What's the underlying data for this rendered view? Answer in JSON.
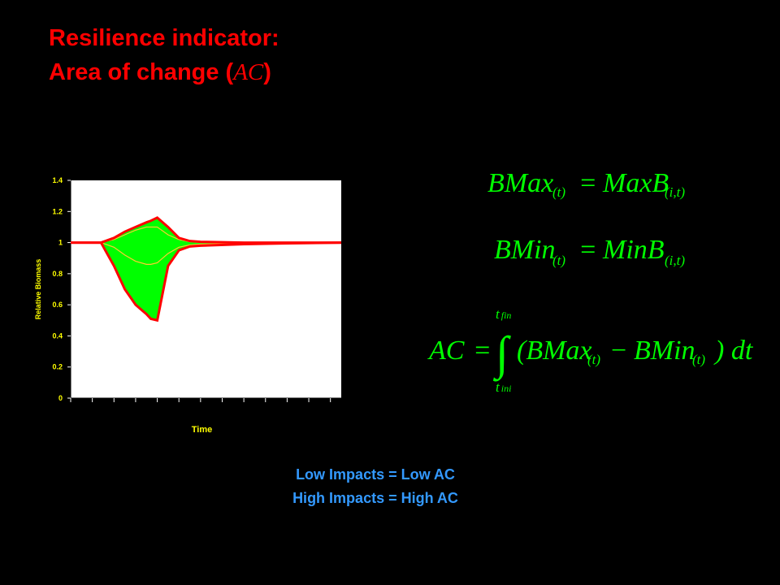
{
  "title": {
    "line1": "Resilience indicator:",
    "line2": "Area of change (",
    "line2_ac": "AC",
    "line2_end": ")"
  },
  "chart_data": {
    "type": "line",
    "y_label": "Relative Biomass",
    "x_label": "Time",
    "x": [
      0,
      1,
      1.4,
      2,
      2.5,
      3,
      3.5,
      3.7,
      4,
      4.5,
      5,
      5.5,
      6,
      8,
      10,
      12.5
    ],
    "xlim": [
      0,
      12.5
    ],
    "ylim": [
      0,
      1.4
    ],
    "yticks": [
      0,
      0.2,
      0.4,
      0.6,
      0.8,
      1,
      1.2,
      1.4
    ],
    "fill_between": "#00ff00",
    "series": [
      {
        "color": "#ff0000",
        "values": [
          1,
          1,
          1,
          1.03,
          1.07,
          1.1,
          1.13,
          1.14,
          1.16,
          1.1,
          1.03,
          1.01,
          1.005,
          1,
          1,
          1
        ]
      },
      {
        "color": "#ff0000",
        "values": [
          1,
          1,
          1,
          0.85,
          0.7,
          0.6,
          0.54,
          0.51,
          0.5,
          0.85,
          0.95,
          0.975,
          0.98,
          0.99,
          0.995,
          1
        ]
      },
      {
        "color": "#ffcc33",
        "values": [
          1,
          1,
          1,
          0.97,
          0.92,
          0.88,
          0.86,
          0.86,
          0.87,
          0.93,
          0.97,
          0.985,
          0.99,
          0.995,
          1,
          1
        ]
      },
      {
        "color": "#ffcc33",
        "values": [
          1,
          1,
          1,
          1.02,
          1.05,
          1.08,
          1.1,
          1.1,
          1.1,
          1.05,
          1.02,
          1.005,
          1,
          1,
          1,
          1
        ]
      }
    ]
  },
  "formulas": {
    "bmax": {
      "lhs": "BMax",
      "lhs_sub": "(t)",
      "eq": "=",
      "rhs": "MaxB",
      "rhs_sub": "(i,t)"
    },
    "bmin": {
      "lhs": "BMin",
      "lhs_sub": "(t)",
      "eq": "=",
      "rhs": "MinB",
      "rhs_sub": "(i,t)"
    },
    "ac": {
      "lhs": "AC",
      "eq": "=",
      "integral": "∫",
      "upper": "t",
      "upper_sub": "fin",
      "lower": "t",
      "lower_sub": "ini",
      "term1": "(BMax",
      "sub1": "(t)",
      "minus": "−",
      "term2": "BMin",
      "sub2": "(t)",
      "end": ") dt"
    }
  },
  "footer": {
    "line1": "Low Impacts = Low AC",
    "line2": "High Impacts = High AC"
  }
}
